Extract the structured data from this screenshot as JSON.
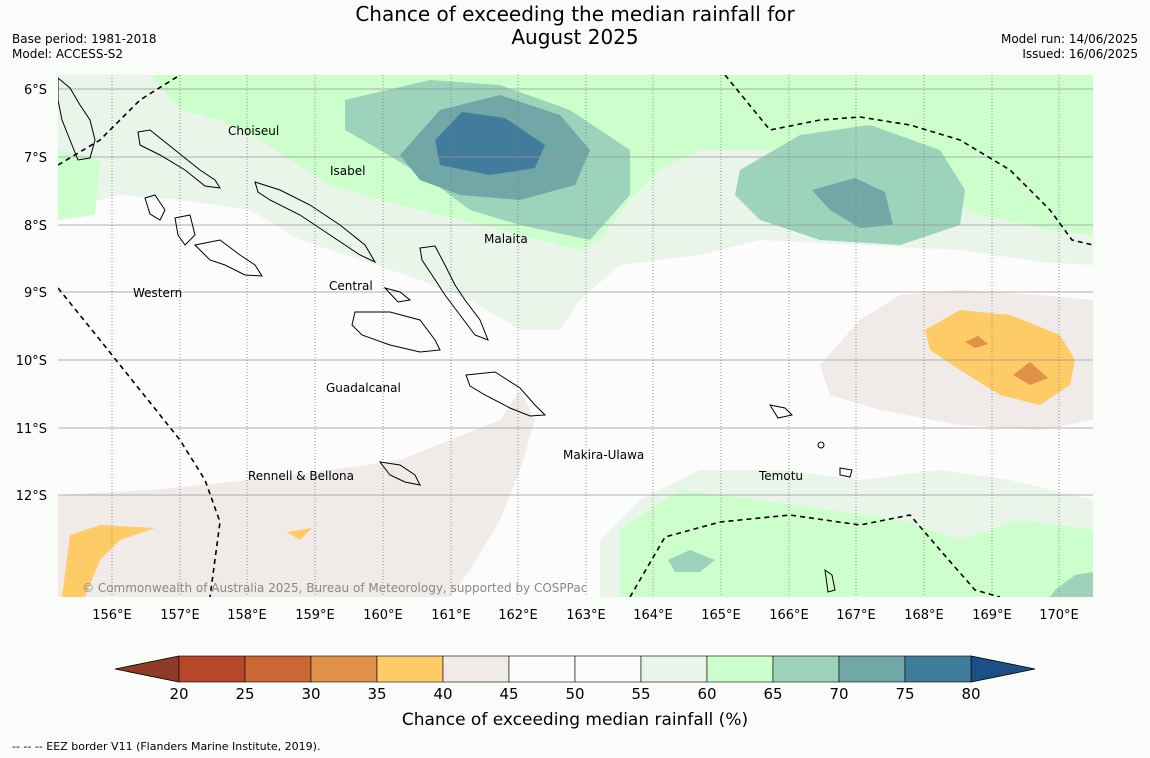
{
  "title_line1": "Chance of exceeding the median rainfall for",
  "title_line2": "August 2025",
  "base_period": "Base period: 1981-2018",
  "model": "Model: ACCESS-S2",
  "model_run": "Model run: 14/06/2025",
  "issued": "Issued: 16/06/2025",
  "lat_labels": [
    "6°S",
    "7°S",
    "8°S",
    "9°S",
    "10°S",
    "11°S",
    "12°S"
  ],
  "lon_labels": [
    "156°E",
    "157°E",
    "158°E",
    "159°E",
    "160°E",
    "161°E",
    "162°E",
    "163°E",
    "164°E",
    "165°E",
    "166°E",
    "167°E",
    "168°E",
    "169°E",
    "170°E"
  ],
  "place_labels": [
    "Choiseul",
    "Isabel",
    "Malaita",
    "Central",
    "Western",
    "Guadalcanal",
    "Rennell & Bellona",
    "Makira-Ulawa",
    "Temotu"
  ],
  "copyright": "© Commonwealth of Australia 2025, Bureau of Meteorology, supported by COSPPac",
  "colorbar": {
    "label": "Chance of exceeding median rainfall (%)",
    "ticks": [
      "20",
      "25",
      "30",
      "35",
      "40",
      "45",
      "50",
      "55",
      "60",
      "65",
      "70",
      "75",
      "80"
    ],
    "colors": [
      "#b5472a",
      "#cc6633",
      "#e0914a",
      "#fdcc66",
      "#f0ebe8",
      "#fcfcfc",
      "#fcfcfc",
      "#e9f5e9",
      "#ccffcc",
      "#9dd3bb",
      "#71a7a6",
      "#427c9d"
    ],
    "under_color": "#8e3a27",
    "over_color": "#1b4f86"
  },
  "eez_note": "--  --  -- EEZ border V11 (Flanders Marine Institute, 2019)."
}
